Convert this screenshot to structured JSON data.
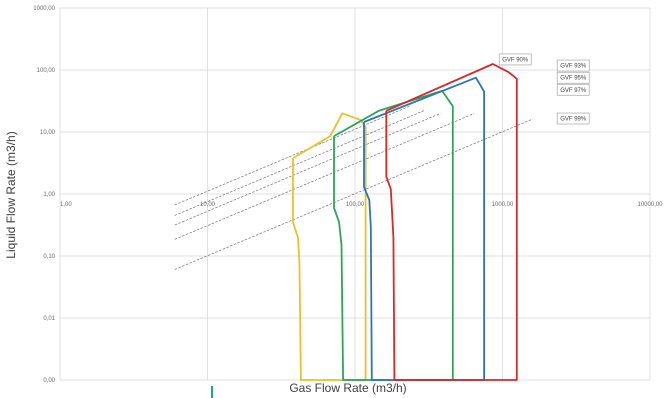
{
  "chart_data": {
    "type": "line",
    "xlabel": "Gas Flow Rate (m3/h)",
    "ylabel": "Liquid Flow Rate (m3/h)",
    "x_scale": "log",
    "y_scale": "log",
    "xlim": [
      1,
      10000
    ],
    "ylim": [
      0.001,
      1000
    ],
    "grid": true,
    "legend": "none",
    "x_ticks": [
      {
        "value": 1,
        "label": "1,00"
      },
      {
        "value": 10,
        "label": "10,00"
      },
      {
        "value": 100,
        "label": "100,00"
      },
      {
        "value": 1000,
        "label": "1000,00"
      },
      {
        "value": 10000,
        "label": "10000,00"
      }
    ],
    "y_ticks": [
      {
        "value": 0.001,
        "label": "0,00"
      },
      {
        "value": 0.01,
        "label": "0,01"
      },
      {
        "value": 0.1,
        "label": "0,10"
      },
      {
        "value": 1,
        "label": "1,00"
      },
      {
        "value": 10,
        "label": "10,00"
      },
      {
        "value": 100,
        "label": "100,00"
      },
      {
        "value": 1000,
        "label": "1000,00"
      }
    ],
    "gvf_lines": [
      {
        "label": "GVF 90%",
        "gvf": 0.9,
        "x_range": [
          6.0,
          240
        ],
        "label_at": [
          950,
          148
        ]
      },
      {
        "label": "GVF 93%",
        "gvf": 0.93,
        "x_range": [
          6.0,
          300
        ],
        "label_at": [
          2350,
          118
        ]
      },
      {
        "label": "GVF 95%",
        "gvf": 0.95,
        "x_range": [
          6.0,
          380
        ],
        "label_at": [
          2350,
          75
        ]
      },
      {
        "label": "GVF 97%",
        "gvf": 0.97,
        "x_range": [
          6.0,
          640
        ],
        "label_at": [
          2350,
          48
        ]
      },
      {
        "label": "GVF 99%",
        "gvf": 0.99,
        "x_range": [
          6.0,
          1600
        ],
        "label_at": [
          2350,
          16.5
        ]
      }
    ],
    "series": [
      {
        "color": "#e8c22a",
        "points": [
          [
            38,
            3.8
          ],
          [
            38,
            0.35
          ],
          [
            41,
            0.2
          ],
          [
            42,
            0.08
          ],
          [
            43,
            0.001
          ],
          [
            118,
            0.001
          ],
          [
            118,
            12.0
          ],
          [
            110,
            15.5
          ],
          [
            82,
            20
          ],
          [
            68,
            8.6
          ],
          [
            38,
            3.8
          ]
        ]
      },
      {
        "color": "#2ea35c",
        "points": [
          [
            72,
            8.6
          ],
          [
            72,
            0.6
          ],
          [
            78,
            0.35
          ],
          [
            81,
            0.15
          ],
          [
            83,
            0.001
          ],
          [
            460,
            0.001
          ],
          [
            460,
            26
          ],
          [
            390,
            46
          ],
          [
            145,
            22
          ],
          [
            72,
            8.6
          ]
        ]
      },
      {
        "color": "#2e75b6",
        "points": [
          [
            115,
            14.5
          ],
          [
            115,
            1.3
          ],
          [
            125,
            0.8
          ],
          [
            128,
            0.3
          ],
          [
            130,
            0.001
          ],
          [
            750,
            0.001
          ],
          [
            750,
            45
          ],
          [
            660,
            75
          ],
          [
            115,
            14.5
          ]
        ]
      },
      {
        "color": "#d42a2a",
        "points": [
          [
            163,
            22
          ],
          [
            163,
            1.9
          ],
          [
            175,
            1.2
          ],
          [
            182,
            0.2
          ],
          [
            185,
            0.001
          ],
          [
            1250,
            0.001
          ],
          [
            1250,
            72
          ],
          [
            1100,
            92
          ],
          [
            860,
            125
          ],
          [
            163,
            22
          ]
        ]
      }
    ]
  }
}
